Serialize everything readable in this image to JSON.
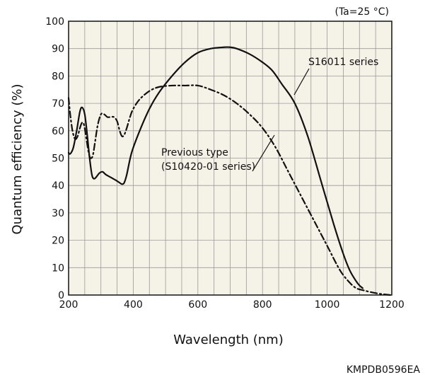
{
  "chart_data": {
    "type": "line",
    "condition": "(Ta=25 °C)",
    "xlabel": "Wavelength (nm)",
    "ylabel": "Quantum efficiency (%)",
    "xlim": [
      200,
      1200
    ],
    "ylim": [
      0,
      100
    ],
    "xticks": [
      200,
      400,
      600,
      800,
      1000,
      1200
    ],
    "yticks": [
      0,
      10,
      20,
      30,
      40,
      50,
      60,
      70,
      80,
      90,
      100
    ],
    "grid": true,
    "code": "KMPDB0596EA",
    "series": [
      {
        "name": "S16011 series",
        "style": "solid",
        "color": "#111111",
        "x": [
          200,
          203,
          208,
          215,
          225,
          235,
          242,
          250,
          258,
          265,
          272,
          278,
          285,
          295,
          305,
          315,
          330,
          345,
          358,
          365,
          372,
          380,
          395,
          420,
          450,
          480,
          520,
          560,
          600,
          640,
          680,
          700,
          720,
          760,
          800,
          830,
          860,
          900,
          940,
          980,
          1020,
          1050,
          1070,
          1090,
          1100,
          1110
        ],
        "y": [
          52,
          51.5,
          52,
          54,
          60,
          67,
          68.5,
          66,
          58,
          50,
          44,
          42.5,
          43,
          44.5,
          45,
          44,
          43,
          42,
          41,
          40.5,
          41,
          44,
          52,
          60,
          68,
          74,
          80,
          85,
          88.5,
          90,
          90.5,
          90.5,
          90,
          88,
          85,
          82,
          77,
          70,
          58,
          42,
          26,
          15,
          9,
          5,
          3.5,
          2.5
        ]
      },
      {
        "name": "Previous type (S10420-01 series)",
        "style": "dash-dot",
        "color": "#111111",
        "x": [
          200,
          205,
          212,
          220,
          228,
          235,
          242,
          248,
          255,
          262,
          268,
          275,
          282,
          290,
          300,
          310,
          320,
          330,
          340,
          350,
          358,
          365,
          372,
          380,
          390,
          400,
          420,
          450,
          480,
          520,
          560,
          600,
          640,
          680,
          720,
          760,
          800,
          840,
          880,
          920,
          960,
          1000,
          1040,
          1070,
          1090,
          1110,
          1130,
          1160,
          1180,
          1195
        ],
        "y": [
          72,
          66,
          60,
          57,
          58,
          61,
          63,
          62,
          57,
          52,
          50,
          51,
          56,
          62,
          66,
          66,
          65,
          65,
          65,
          63.5,
          60,
          58,
          58.5,
          61,
          65,
          68,
          71.5,
          74.5,
          76,
          76.5,
          76.5,
          76.5,
          75,
          73,
          70,
          66,
          61,
          54,
          45,
          36,
          27,
          18,
          9,
          4.5,
          2.5,
          1.8,
          1.2,
          0.5,
          0.2,
          0
        ]
      }
    ],
    "annotations": [
      {
        "text": "S16011 series",
        "series": 0
      },
      {
        "text": "Previous type",
        "series": 1
      },
      {
        "text": "(S10420-01 series)",
        "series": 1
      }
    ]
  }
}
